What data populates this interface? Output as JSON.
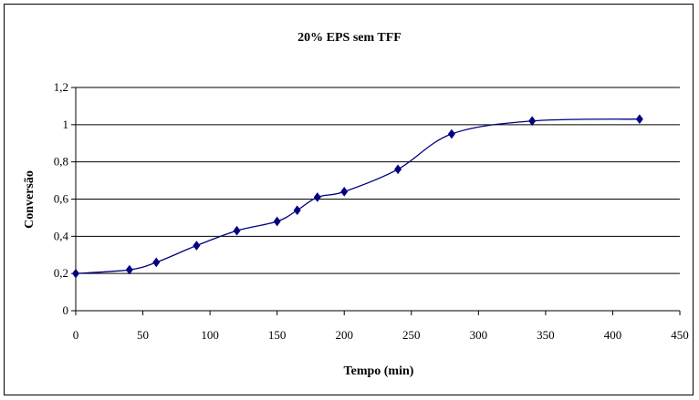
{
  "chart_data": {
    "type": "line",
    "title": "20% EPS sem TFF",
    "xlabel": "Tempo (min)",
    "ylabel": "Conversão",
    "xlim": [
      0,
      450
    ],
    "ylim": [
      0,
      1.2
    ],
    "x_ticks": [
      "0",
      "50",
      "100",
      "150",
      "200",
      "250",
      "300",
      "350",
      "400",
      "450"
    ],
    "y_ticks": [
      "0",
      "0,2",
      "0,4",
      "0,6",
      "0,8",
      "1",
      "1,2"
    ],
    "grid": "horizontal",
    "legend": "none",
    "series": [
      {
        "color": "#000080",
        "marker": "diamond",
        "x": [
          0,
          40,
          60,
          90,
          120,
          150,
          165,
          180,
          200,
          240,
          280,
          340,
          420
        ],
        "y": [
          0.2,
          0.22,
          0.26,
          0.35,
          0.43,
          0.48,
          0.54,
          0.61,
          0.64,
          0.76,
          0.95,
          1.02,
          1.03
        ]
      }
    ]
  }
}
